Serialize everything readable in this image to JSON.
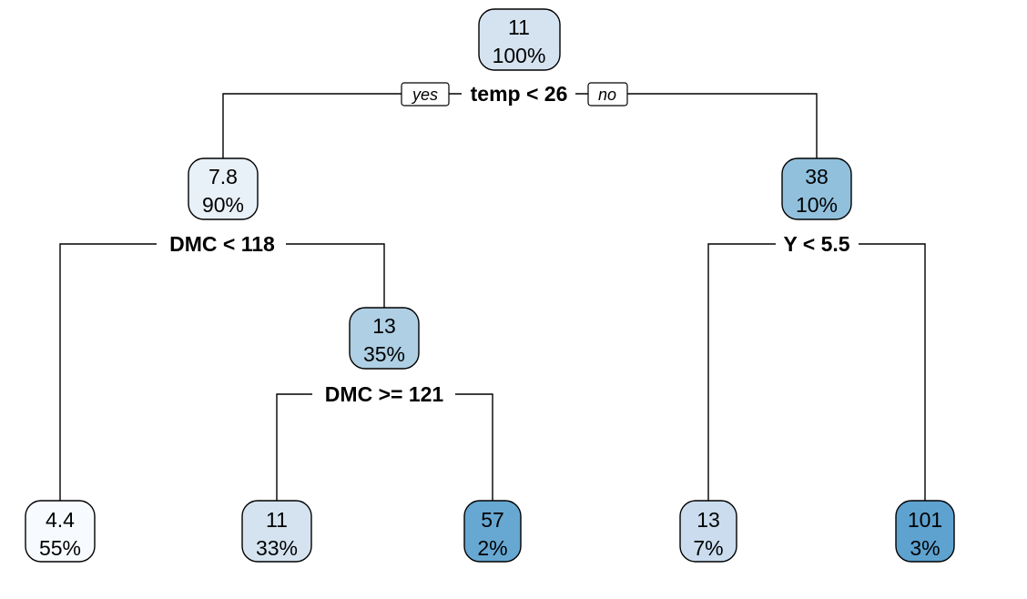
{
  "branch_labels": {
    "yes": "yes",
    "no": "no"
  },
  "splits": {
    "root": "temp < 26",
    "left": "DMC < 118",
    "left_right": "DMC >= 121",
    "right": "Y < 5.5"
  },
  "nodes": {
    "n1": {
      "value": "11",
      "pct": "100%",
      "fill": "#d5e3f0"
    },
    "n2": {
      "value": "7.8",
      "pct": "90%",
      "fill": "#e8f0f8"
    },
    "n3": {
      "value": "38",
      "pct": "10%",
      "fill": "#91c0dd"
    },
    "n5": {
      "value": "13",
      "pct": "35%",
      "fill": "#aecfe4"
    },
    "n4": {
      "value": "4.4",
      "pct": "55%",
      "fill": "#f7fbff"
    },
    "n10": {
      "value": "11",
      "pct": "33%",
      "fill": "#d5e3f0"
    },
    "n11": {
      "value": "57",
      "pct": "2%",
      "fill": "#67a8d2"
    },
    "n6": {
      "value": "13",
      "pct": "7%",
      "fill": "#cadcee"
    },
    "n7": {
      "value": "101",
      "pct": "3%",
      "fill": "#5ea2d0"
    }
  }
}
